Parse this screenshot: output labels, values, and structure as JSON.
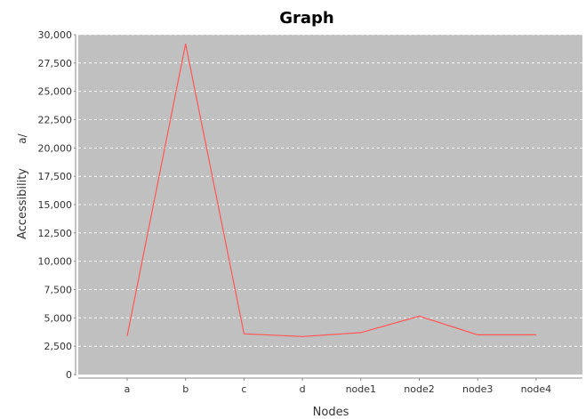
{
  "chart_data": {
    "type": "line",
    "title": "Graph",
    "xlabel": "Nodes",
    "ylabel": "Accessibility",
    "ylabel_glyph": "a/",
    "categories": [
      "a",
      "b",
      "c",
      "d",
      "node1",
      "node2",
      "node3",
      "node4"
    ],
    "series": [
      {
        "values": [
          3400,
          29200,
          3600,
          3350,
          3700,
          5150,
          3500,
          3500
        ]
      }
    ],
    "ylim": [
      0,
      30000
    ],
    "yticks": [
      0,
      2500,
      5000,
      7500,
      10000,
      12500,
      15000,
      17500,
      20000,
      22500,
      25000,
      27500,
      30000
    ],
    "ytick_labels": [
      "0",
      "2,500",
      "5,000",
      "7,500",
      "10,000",
      "12,500",
      "15,000",
      "17,500",
      "20,000",
      "22,500",
      "25,000",
      "27,500",
      "30,000"
    ],
    "grid": true,
    "legend": "none"
  },
  "colors": {
    "plot_background": "#c0c0c0",
    "gridline": "#ffffff",
    "series_line": "#ff5555",
    "axis": "#888888"
  }
}
